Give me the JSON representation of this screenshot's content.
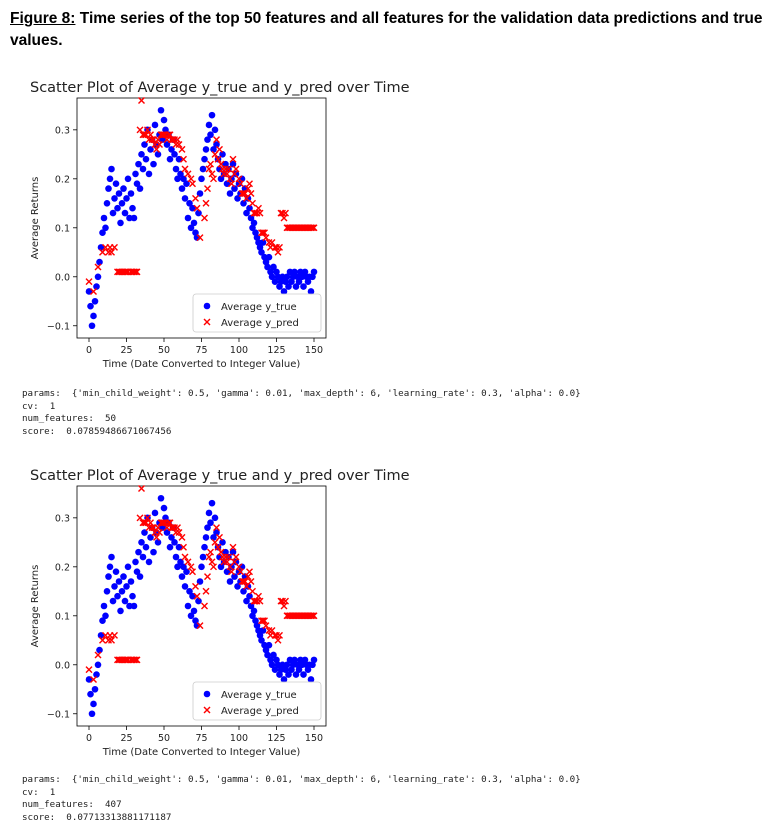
{
  "caption": {
    "label": "Figure 8:",
    "text": " Time series of the top 50 features and all features for the validation data predictions and true values."
  },
  "colors": {
    "true_series": "#0000ff",
    "pred_series": "#ff0000"
  },
  "chart_data": [
    {
      "type": "scatter",
      "title": "Scatter Plot of Average y_true and y_pred over Time",
      "xlabel": "Time (Date Converted to Integer Value)",
      "ylabel": "Average Returns",
      "xlim": [
        -8,
        158
      ],
      "ylim": [
        -0.125,
        0.365
      ],
      "xticks": [
        0,
        25,
        50,
        75,
        100,
        125,
        150
      ],
      "yticks": [
        -0.1,
        0.0,
        0.1,
        0.2,
        0.3
      ],
      "ytick_labels": [
        "−0.1",
        "0.0",
        "0.1",
        "0.2",
        "0.3"
      ],
      "legend_position": "lower right",
      "series": [
        {
          "name": "Average y_true",
          "marker": "circle",
          "x": [
            0,
            1,
            2,
            3,
            4,
            5,
            6,
            7,
            8,
            9,
            10,
            11,
            12,
            13,
            14,
            15,
            16,
            17,
            18,
            19,
            20,
            21,
            22,
            23,
            24,
            25,
            26,
            27,
            28,
            29,
            30,
            31,
            32,
            33,
            34,
            35,
            36,
            37,
            38,
            39,
            40,
            41,
            42,
            43,
            44,
            45,
            46,
            47,
            48,
            49,
            50,
            51,
            52,
            53,
            54,
            55,
            56,
            57,
            58,
            59,
            60,
            61,
            62,
            63,
            64,
            65,
            66,
            67,
            68,
            69,
            70,
            71,
            72,
            73,
            74,
            75,
            76,
            77,
            78,
            79,
            80,
            81,
            82,
            83,
            84,
            85,
            86,
            87,
            88,
            89,
            90,
            91,
            92,
            93,
            94,
            95,
            96,
            97,
            98,
            99,
            100,
            101,
            102,
            103,
            104,
            105,
            106,
            107,
            108,
            109,
            110,
            111,
            112,
            113,
            114,
            115,
            116,
            117,
            118,
            119,
            120,
            121,
            122,
            123,
            124,
            125,
            126,
            127,
            128,
            129,
            130,
            131,
            132,
            133,
            134,
            135,
            136,
            137,
            138,
            139,
            140,
            141,
            142,
            143,
            144,
            145,
            146,
            147,
            148,
            149,
            150
          ],
          "y": [
            -0.03,
            -0.06,
            -0.1,
            -0.08,
            -0.05,
            -0.02,
            0.0,
            0.03,
            0.06,
            0.09,
            0.12,
            0.1,
            0.15,
            0.18,
            0.2,
            0.22,
            0.13,
            0.16,
            0.19,
            0.14,
            0.17,
            0.11,
            0.15,
            0.18,
            0.13,
            0.16,
            0.2,
            0.12,
            0.17,
            0.14,
            0.12,
            0.21,
            0.19,
            0.23,
            0.18,
            0.25,
            0.22,
            0.27,
            0.24,
            0.3,
            0.21,
            0.26,
            0.28,
            0.23,
            0.31,
            0.27,
            0.25,
            0.29,
            0.34,
            0.28,
            0.32,
            0.3,
            0.27,
            0.29,
            0.24,
            0.26,
            0.28,
            0.25,
            0.22,
            0.2,
            0.24,
            0.21,
            0.18,
            0.2,
            0.16,
            0.19,
            0.12,
            0.15,
            0.1,
            0.14,
            0.11,
            0.09,
            0.08,
            0.13,
            0.17,
            0.2,
            0.22,
            0.24,
            0.26,
            0.28,
            0.31,
            0.29,
            0.33,
            0.26,
            0.3,
            0.27,
            0.24,
            0.22,
            0.2,
            0.25,
            0.21,
            0.23,
            0.19,
            0.22,
            0.17,
            0.2,
            0.23,
            0.18,
            0.21,
            0.16,
            0.19,
            0.17,
            0.2,
            0.15,
            0.18,
            0.13,
            0.16,
            0.14,
            0.12,
            0.1,
            0.11,
            0.09,
            0.08,
            0.07,
            0.06,
            0.05,
            0.07,
            0.04,
            0.03,
            0.02,
            0.04,
            0.01,
            0.0,
            0.02,
            -0.01,
            0.01,
            0.0,
            -0.02,
            -0.01,
            0.0,
            -0.03,
            -0.01,
            0.0,
            -0.02,
            0.01,
            -0.01,
            0.0,
            0.01,
            -0.02,
            0.0,
            -0.01,
            0.01,
            0.0,
            -0.02,
            0.01,
            0.0,
            -0.01,
            0.0,
            -0.03,
            0.0,
            0.01
          ]
        },
        {
          "name": "Average y_pred",
          "marker": "x",
          "x": [
            0,
            3,
            6,
            9,
            11,
            13,
            14,
            15,
            17,
            19,
            20,
            21,
            22,
            23,
            24,
            25,
            26,
            28,
            29,
            30,
            31,
            32,
            34,
            35,
            36,
            37,
            38,
            39,
            40,
            41,
            42,
            43,
            44,
            45,
            46,
            47,
            48,
            49,
            50,
            51,
            52,
            53,
            54,
            55,
            56,
            57,
            58,
            59,
            60,
            62,
            63,
            64,
            66,
            68,
            69,
            71,
            72,
            74,
            77,
            78,
            79,
            80,
            81,
            82,
            83,
            84,
            85,
            86,
            87,
            88,
            89,
            90,
            91,
            92,
            93,
            94,
            95,
            96,
            97,
            98,
            100,
            101,
            102,
            103,
            104,
            105,
            106,
            107,
            108,
            109,
            110,
            111,
            112,
            113,
            114,
            115,
            116,
            117,
            118,
            120,
            121,
            122,
            124,
            125,
            126,
            127,
            128,
            129,
            130,
            131,
            132,
            133,
            134,
            135,
            136,
            137,
            138,
            139,
            140,
            141,
            142,
            143,
            144,
            145,
            146,
            147,
            148,
            149,
            150
          ],
          "y": [
            -0.01,
            -0.03,
            0.02,
            0.05,
            0.06,
            0.05,
            0.06,
            0.05,
            0.06,
            0.01,
            0.01,
            0.01,
            0.01,
            0.01,
            0.01,
            0.01,
            0.01,
            0.01,
            0.01,
            0.01,
            0.01,
            0.01,
            0.3,
            0.36,
            0.29,
            0.29,
            0.29,
            0.3,
            0.28,
            0.29,
            0.28,
            0.28,
            0.27,
            0.26,
            0.28,
            0.27,
            0.29,
            0.29,
            0.29,
            0.29,
            0.28,
            0.29,
            0.29,
            0.28,
            0.28,
            0.28,
            0.27,
            0.28,
            0.27,
            0.26,
            0.24,
            0.22,
            0.21,
            0.2,
            0.19,
            0.16,
            0.14,
            0.08,
            0.12,
            0.15,
            0.18,
            0.22,
            0.23,
            0.21,
            0.2,
            0.25,
            0.28,
            0.24,
            0.26,
            0.23,
            0.22,
            0.21,
            0.22,
            0.21,
            0.22,
            0.2,
            0.19,
            0.24,
            0.21,
            0.22,
            0.2,
            0.19,
            0.17,
            0.17,
            0.17,
            0.16,
            0.18,
            0.19,
            0.17,
            0.15,
            0.13,
            0.13,
            0.13,
            0.14,
            0.13,
            0.09,
            0.09,
            0.09,
            0.08,
            0.07,
            0.06,
            0.07,
            0.06,
            0.06,
            0.05,
            0.06,
            0.13,
            0.13,
            0.12,
            0.13,
            0.1,
            0.1,
            0.1,
            0.1,
            0.1,
            0.1,
            0.1,
            0.1,
            0.1,
            0.1,
            0.1,
            0.1,
            0.1,
            0.1,
            0.1,
            0.1,
            0.1,
            0.1,
            0.1
          ]
        }
      ]
    },
    {
      "type": "scatter",
      "title": "Scatter Plot of Average y_true and y_pred over Time",
      "xlabel": "Time (Date Converted to Integer Value)",
      "ylabel": "Average Returns",
      "xlim": [
        -8,
        158
      ],
      "ylim": [
        -0.125,
        0.365
      ],
      "xticks": [
        0,
        25,
        50,
        75,
        100,
        125,
        150
      ],
      "yticks": [
        -0.1,
        0.0,
        0.1,
        0.2,
        0.3
      ],
      "ytick_labels": [
        "−0.1",
        "0.0",
        "0.1",
        "0.2",
        "0.3"
      ],
      "legend_position": "lower right",
      "series_same_as_first": true
    }
  ],
  "runs": [
    {
      "params_label": "params:",
      "params_value": "{'min_child_weight': 0.5, 'gamma': 0.01, 'max_depth': 6, 'learning_rate': 0.3, 'alpha': 0.0}",
      "cv_label": "cv:",
      "cv_value": "1",
      "num_features_label": "num_features:",
      "num_features_value": "50",
      "score_label": "score:",
      "score_value": "0.07859486671067456"
    },
    {
      "params_label": "params:",
      "params_value": "{'min_child_weight': 0.5, 'gamma': 0.01, 'max_depth': 6, 'learning_rate': 0.3, 'alpha': 0.0}",
      "cv_label": "cv:",
      "cv_value": "1",
      "num_features_label": "num_features:",
      "num_features_value": "407",
      "score_label": "score:",
      "score_value": "0.07713313881171187"
    }
  ]
}
